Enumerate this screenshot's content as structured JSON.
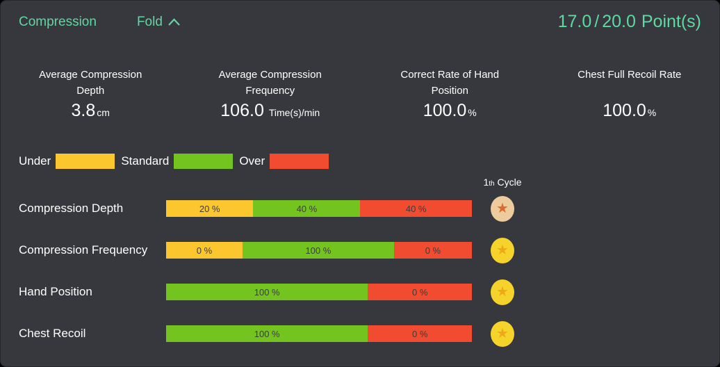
{
  "header": {
    "title": "Compression",
    "fold_label": "Fold",
    "score_current": "17.0",
    "score_sep": "/",
    "score_total": "20.0",
    "score_unit": "Point(s)",
    "accent_color": "#5fd8a2"
  },
  "stats": [
    {
      "label": "Average Compression Depth",
      "value": "3.8",
      "unit": "cm"
    },
    {
      "label": "Average Compression Frequency",
      "value": "106.0",
      "unit": "Time(s)/min"
    },
    {
      "label": "Correct Rate of Hand Position",
      "value": "100.0",
      "unit": "%"
    },
    {
      "label": "Chest Full Recoil Rate",
      "value": "100.0",
      "unit": "%"
    }
  ],
  "legend": [
    {
      "label": "Under",
      "color": "#fbc62e"
    },
    {
      "label": "Standard",
      "color": "#74c41f"
    },
    {
      "label": "Over",
      "color": "#f14b30"
    }
  ],
  "cycle_header": {
    "number": "1",
    "ordinal": "th",
    "label": "Cycle"
  },
  "chart_data": {
    "type": "bar",
    "orientation": "horizontal",
    "stacked": true,
    "value_unit": "%",
    "legend_position": "top",
    "categories": [
      "Compression Depth",
      "Compression Frequency",
      "Hand Position",
      "Chest Recoil"
    ],
    "series": [
      {
        "name": "Under",
        "color": "#fbc62e",
        "values": [
          20,
          0,
          null,
          null
        ]
      },
      {
        "name": "Standard",
        "color": "#74c41f",
        "values": [
          40,
          100,
          100,
          100
        ]
      },
      {
        "name": "Over",
        "color": "#f14b30",
        "values": [
          40,
          0,
          0,
          0
        ]
      }
    ],
    "medals": [
      "bronze",
      "gold",
      "gold",
      "gold"
    ]
  },
  "rows": [
    {
      "label": "Compression Depth",
      "medal": "bronze",
      "segments": [
        {
          "name": "Under",
          "text": "20 %",
          "color": "#fbc62e",
          "width_pct": 28.5
        },
        {
          "name": "Standard",
          "text": "40 %",
          "color": "#74c41f",
          "width_pct": 35.0
        },
        {
          "name": "Over",
          "text": "40 %",
          "color": "#f14b30",
          "width_pct": 36.5
        }
      ]
    },
    {
      "label": "Compression Frequency",
      "medal": "gold",
      "segments": [
        {
          "name": "Under",
          "text": "0 %",
          "color": "#fbc62e",
          "width_pct": 25.0
        },
        {
          "name": "Standard",
          "text": "100 %",
          "color": "#74c41f",
          "width_pct": 49.5
        },
        {
          "name": "Over",
          "text": "0 %",
          "color": "#f14b30",
          "width_pct": 25.5
        }
      ]
    },
    {
      "label": "Hand Position",
      "medal": "gold",
      "segments": [
        {
          "name": "Standard",
          "text": "100 %",
          "color": "#74c41f",
          "width_pct": 66.0
        },
        {
          "name": "Over",
          "text": "0 %",
          "color": "#f14b30",
          "width_pct": 34.0
        }
      ]
    },
    {
      "label": "Chest Recoil",
      "medal": "gold",
      "segments": [
        {
          "name": "Standard",
          "text": "100 %",
          "color": "#74c41f",
          "width_pct": 66.0
        },
        {
          "name": "Over",
          "text": "0 %",
          "color": "#f14b30",
          "width_pct": 34.0
        }
      ]
    }
  ],
  "medal_colors": {
    "gold": {
      "circle": "#f6d32b",
      "star": "#eda917"
    },
    "bronze": {
      "circle": "#eecb9d",
      "star": "#dc6b2f"
    }
  },
  "icons": {
    "medal_star": "★"
  }
}
